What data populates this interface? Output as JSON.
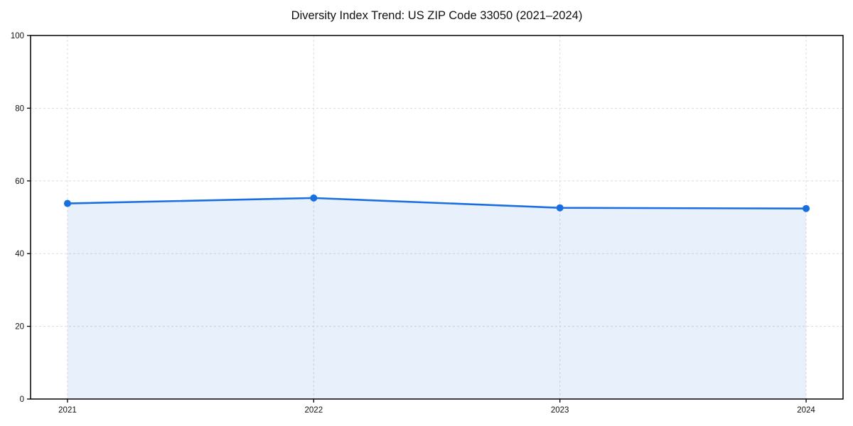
{
  "chart_data": {
    "type": "area",
    "title": "Diversity Index Trend: US ZIP Code 33050 (2021–2024)",
    "x": [
      2021,
      2022,
      2023,
      2024
    ],
    "xtick_labels": [
      "2021",
      "2022",
      "2023",
      "2024"
    ],
    "series": [
      {
        "name": "Diversity Index",
        "values": [
          53.8,
          55.3,
          52.6,
          52.4
        ]
      }
    ],
    "xlabel": "",
    "ylabel": "",
    "ylim": [
      0,
      100
    ],
    "yticks": [
      0,
      20,
      40,
      60,
      80,
      100
    ],
    "grid": true,
    "grid_style": "dashed",
    "legend_position": "none",
    "x_margin_frac": 0.05,
    "colors": {
      "line": "#1a6fe0",
      "marker": "#1a6fe0",
      "fill": "rgba(26, 111, 224, 0.10)",
      "grid": "#dfdfdf",
      "spine": "#000000",
      "tick": "#000000",
      "tick_label": "#111111",
      "background": "#ffffff",
      "title": "#111111"
    }
  }
}
